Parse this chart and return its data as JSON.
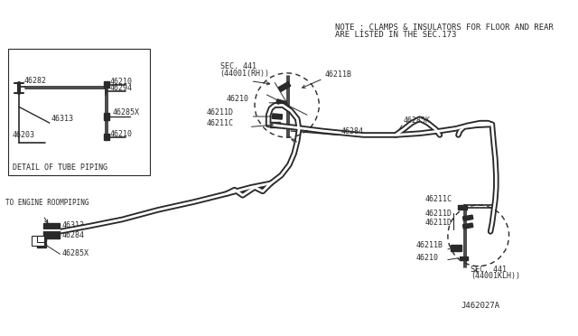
{
  "bg_color": "#ffffff",
  "line_color": "#2a2a2a",
  "text_color": "#2a2a2a",
  "fig_width": 6.4,
  "fig_height": 3.72,
  "dpi": 100,
  "note_text1": "NOTE : CLAMPS & INSULATORS FOR FLOOR AND REAR",
  "note_text2": "ARE LISTED IN THE SEC.173",
  "diagram_id": "J462027A",
  "detail_box_label": "DETAIL OF TUBE PIPING",
  "engine_room_label": "TO ENGINE ROOMPIPING"
}
